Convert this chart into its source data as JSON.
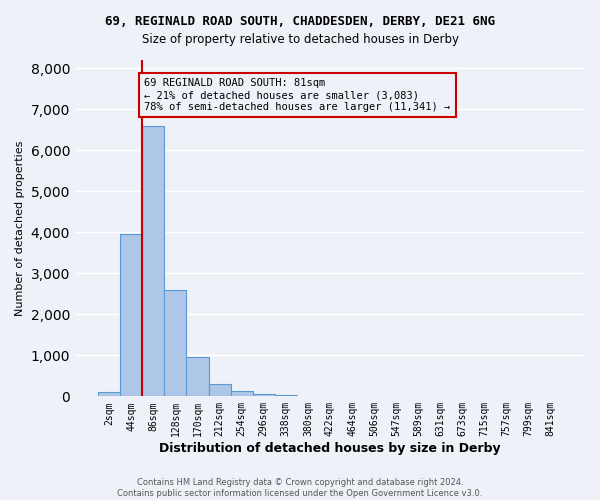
{
  "title1": "69, REGINALD ROAD SOUTH, CHADDESDEN, DERBY, DE21 6NG",
  "title2": "Size of property relative to detached houses in Derby",
  "xlabel": "Distribution of detached houses by size in Derby",
  "ylabel": "Number of detached properties",
  "bar_heights": [
    100,
    3950,
    6600,
    2600,
    950,
    310,
    130,
    60,
    30,
    10,
    5,
    3,
    2,
    1,
    1,
    1,
    1,
    0,
    0,
    0,
    0
  ],
  "bar_labels": [
    "2sqm",
    "44sqm",
    "86sqm",
    "128sqm",
    "170sqm",
    "212sqm",
    "254sqm",
    "296sqm",
    "338sqm",
    "380sqm",
    "422sqm",
    "464sqm",
    "506sqm",
    "547sqm",
    "589sqm",
    "631sqm",
    "673sqm",
    "715sqm",
    "757sqm",
    "799sqm",
    "841sqm"
  ],
  "bar_color": "#aec6e8",
  "bar_edgecolor": "#5b9bd5",
  "vline_x": 1.5,
  "vline_color": "#cc0000",
  "annotation_text": "69 REGINALD ROAD SOUTH: 81sqm\n← 21% of detached houses are smaller (3,083)\n78% of semi-detached houses are larger (11,341) →",
  "annotation_box_edgecolor": "#cc0000",
  "annotation_fontsize": 7.5,
  "ylim": [
    0,
    8200
  ],
  "yticks": [
    0,
    1000,
    2000,
    3000,
    4000,
    5000,
    6000,
    7000,
    8000
  ],
  "footer": "Contains HM Land Registry data © Crown copyright and database right 2024.\nContains public sector information licensed under the Open Government Licence v3.0.",
  "background_color": "#eef2f8",
  "grid_color": "#ffffff"
}
